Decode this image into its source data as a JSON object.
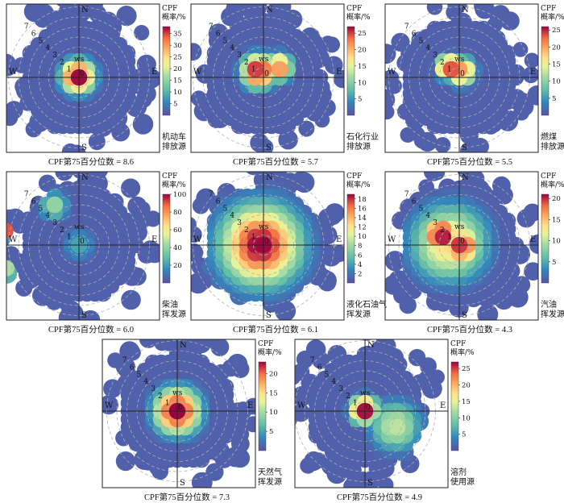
{
  "chart_data": [
    {
      "type": "heatmap",
      "subtype": "polar-cpf",
      "directions": [
        "N",
        "E",
        "S",
        "W"
      ],
      "ws_label": "ws",
      "rings": [
        "0",
        "1",
        "2",
        "3",
        "4",
        "5",
        "6",
        "7"
      ],
      "colorbar_title": [
        "CPF",
        "概率/%"
      ],
      "colorbar_ticks": [
        5,
        10,
        15,
        20,
        25,
        30,
        35
      ],
      "colorbar_range": [
        0,
        38
      ],
      "source_label": [
        "机动车",
        "排放源"
      ],
      "caption": "CPF第75百分位数 = 8.6",
      "hotspots": [
        {
          "dx": -0.1,
          "dy": 0.1,
          "value": 38,
          "spread": 0.9
        }
      ]
    },
    {
      "type": "heatmap",
      "subtype": "polar-cpf",
      "directions": [
        "N",
        "E",
        "S",
        "W"
      ],
      "ws_label": "ws",
      "rings": [
        "0",
        "1",
        "2",
        "3",
        "4",
        "5",
        "6",
        "7"
      ],
      "colorbar_title": [
        "CPF",
        "概率/%"
      ],
      "colorbar_ticks": [
        5,
        10,
        15,
        20,
        25
      ],
      "colorbar_range": [
        0,
        27
      ],
      "source_label": [
        "石化行业",
        "排放源"
      ],
      "caption": "CPF第75百分位数 = 5.7",
      "hotspots": [
        {
          "dx": -0.5,
          "dy": 0.6,
          "value": 27,
          "spread": 0.9
        },
        {
          "dx": 1.5,
          "dy": 1.0,
          "value": 22,
          "spread": 0.7
        }
      ]
    },
    {
      "type": "heatmap",
      "subtype": "polar-cpf",
      "directions": [
        "N",
        "E",
        "S",
        "W"
      ],
      "ws_label": "ws",
      "rings": [
        "0",
        "1",
        "2",
        "3",
        "4",
        "5",
        "6",
        "7"
      ],
      "colorbar_title": [
        "CPF",
        "概率/%"
      ],
      "colorbar_ticks": [
        5,
        10,
        15,
        20,
        25
      ],
      "colorbar_range": [
        0,
        26
      ],
      "source_label": [
        "燃煤",
        "排放源"
      ],
      "caption": "CPF第75百分位数 = 5.5",
      "hotspots": [
        {
          "dx": -1.0,
          "dy": 1.0,
          "value": 26,
          "spread": 0.6
        },
        {
          "dx": 0.2,
          "dy": 0.6,
          "value": 22,
          "spread": 0.7
        }
      ]
    },
    {
      "type": "heatmap",
      "subtype": "polar-cpf",
      "directions": [
        "N",
        "E",
        "S",
        "W"
      ],
      "ws_label": "ws",
      "rings": [
        "0",
        "1",
        "2",
        "3",
        "4",
        "5",
        "6",
        "7"
      ],
      "colorbar_title": [
        "CPF",
        "概率/%"
      ],
      "colorbar_ticks": [
        20,
        40,
        60,
        80,
        100
      ],
      "colorbar_range": [
        0,
        100
      ],
      "source_label": [
        "柴油",
        "挥发源"
      ],
      "caption": "CPF第75百分位数 = 6.0",
      "hotspots": [
        {
          "dx": -7.3,
          "dy": 1.4,
          "value": 90,
          "spread": 0.5
        },
        {
          "dx": -7.2,
          "dy": -2.3,
          "value": 45,
          "spread": 0.5
        },
        {
          "dx": -2.5,
          "dy": 3.9,
          "value": 40,
          "spread": 0.7
        },
        {
          "dx": 0.0,
          "dy": 0.0,
          "value": 22,
          "spread": 0.8
        }
      ]
    },
    {
      "type": "heatmap",
      "subtype": "polar-cpf",
      "directions": [
        "N",
        "E",
        "S",
        "W"
      ],
      "ws_label": "ws",
      "rings": [
        "0",
        "1",
        "2",
        "3",
        "4",
        "5",
        "6",
        "7"
      ],
      "colorbar_title": [
        "CPF",
        "概率/%"
      ],
      "colorbar_ticks": [
        2,
        4,
        6,
        8,
        10,
        12,
        14,
        16,
        18
      ],
      "colorbar_range": [
        0,
        19
      ],
      "source_label": [
        "液化石油气",
        "挥发源"
      ],
      "caption": "CPF第75百分位数 = 6.1",
      "hotspots": [
        {
          "dx": -0.3,
          "dy": 0.0,
          "value": 19,
          "spread": 2.4
        }
      ]
    },
    {
      "type": "heatmap",
      "subtype": "polar-cpf",
      "directions": [
        "N",
        "E",
        "S",
        "W"
      ],
      "ws_label": "ws",
      "rings": [
        "0",
        "1",
        "2",
        "3",
        "4",
        "5",
        "6",
        "7"
      ],
      "colorbar_title": [
        "CPF",
        "概率/%"
      ],
      "colorbar_ticks": [
        5,
        10,
        15,
        20
      ],
      "colorbar_range": [
        0,
        21
      ],
      "source_label": [
        "汽油",
        "挥发源"
      ],
      "caption": "CPF第75百分位数 = 4.3",
      "hotspots": [
        {
          "dx": -1.8,
          "dy": 1.0,
          "value": 21,
          "spread": 1.0
        },
        {
          "dx": 0.2,
          "dy": -0.1,
          "value": 20,
          "spread": 1.0
        },
        {
          "dx": -1.0,
          "dy": 0.2,
          "value": 14,
          "spread": 2.2
        }
      ]
    },
    {
      "type": "heatmap",
      "subtype": "polar-cpf",
      "directions": [
        "N",
        "E",
        "S",
        "W"
      ],
      "ws_label": "ws",
      "rings": [
        "0",
        "1",
        "2",
        "3",
        "4",
        "5",
        "6",
        "7"
      ],
      "colorbar_title": [
        "CPF",
        "概率/%"
      ],
      "colorbar_ticks": [
        5,
        10,
        15,
        20
      ],
      "colorbar_range": [
        0,
        23
      ],
      "source_label": [
        "天然气",
        "挥发源"
      ],
      "caption": "CPF第75百分位数 = 7.3",
      "hotspots": [
        {
          "dx": 0.0,
          "dy": 0.0,
          "value": 23,
          "spread": 1.3
        }
      ]
    },
    {
      "type": "heatmap",
      "subtype": "polar-cpf",
      "directions": [
        "N",
        "E",
        "S",
        "W"
      ],
      "ws_label": "ws",
      "rings": [
        "0",
        "1",
        "2",
        "3",
        "4",
        "5",
        "6",
        "7"
      ],
      "colorbar_title": [
        "CPF",
        "概率/%"
      ],
      "colorbar_ticks": [
        5,
        10,
        15,
        20,
        25
      ],
      "colorbar_range": [
        0,
        27
      ],
      "source_label": [
        "溶剂",
        "使用源"
      ],
      "caption": "CPF第75百分位数 = 4.9",
      "hotspots": [
        {
          "dx": -0.1,
          "dy": 0.1,
          "value": 27,
          "spread": 0.7
        },
        {
          "dx": 3.0,
          "dy": -1.5,
          "value": 13,
          "spread": 1.4
        }
      ]
    }
  ]
}
